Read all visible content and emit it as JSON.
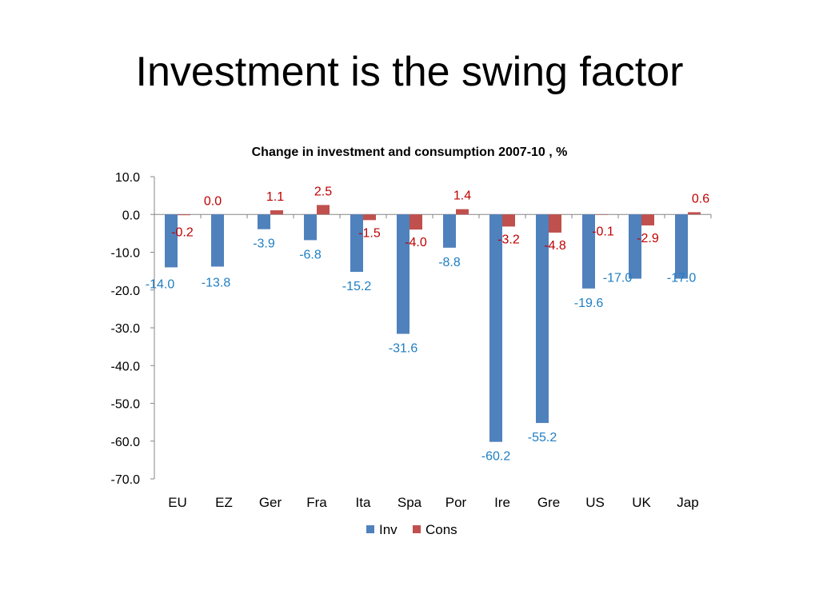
{
  "slide": {
    "title": "Investment is the swing factor"
  },
  "chart_data": {
    "type": "bar",
    "title": "Change in investment and consumption 2007-10 , %",
    "xlabel": "",
    "ylabel": "",
    "ylim": [
      -70,
      10
    ],
    "yticks": [
      10,
      0,
      -10,
      -20,
      -30,
      -40,
      -50,
      -60,
      -70
    ],
    "ytick_labels": [
      "10.0",
      "0.0",
      "-10.0",
      "-20.0",
      "-30.0",
      "-40.0",
      "-50.0",
      "-60.0",
      "-70.0"
    ],
    "categories": [
      "EU",
      "EZ",
      "Ger",
      "Fra",
      "Ita",
      "Spa",
      "Por",
      "Ire",
      "Gre",
      "US",
      "UK",
      "Jap"
    ],
    "series": [
      {
        "name": "Inv",
        "color": "#4F81BD",
        "label_color": "#1F7EC2",
        "values": [
          -14.0,
          -13.8,
          -3.9,
          -6.8,
          -15.2,
          -31.6,
          -8.8,
          -60.2,
          -55.2,
          -19.6,
          -17.0,
          -17.0
        ],
        "labels": [
          "-14.0",
          "-13.8",
          "-3.9",
          "-6.8",
          "-15.2",
          "-31.6",
          "-8.8",
          "-60.2",
          "-55.2",
          "-19.6",
          "-17.0",
          "-17.0"
        ]
      },
      {
        "name": "Cons",
        "color": "#C0504D",
        "label_color": "#C00000",
        "values": [
          -0.2,
          0.0,
          1.1,
          2.5,
          -1.5,
          -4.0,
          1.4,
          -3.2,
          -4.8,
          -0.1,
          -2.9,
          0.6
        ],
        "labels": [
          "-0.2",
          "0.0",
          "1.1",
          "2.5",
          "-1.5",
          "-4.0",
          "1.4",
          "-3.2",
          "-4.8",
          "-0.1",
          "-2.9",
          "0.6"
        ]
      }
    ],
    "grid": false,
    "legend_position": "bottom"
  }
}
